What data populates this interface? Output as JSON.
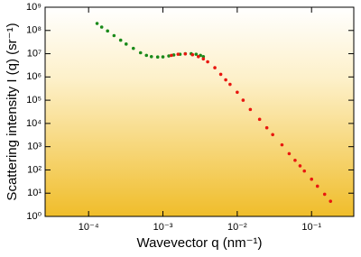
{
  "chart_data": {
    "type": "scatter",
    "x_label": "Wavevector q (nm⁻¹)",
    "y_label": "Scattering intensity I (q) (sr⁻¹)",
    "x_log": true,
    "y_log": true,
    "xlim": [
      2.6e-05,
      0.37
    ],
    "ylim": [
      1,
      1000000000
    ],
    "xticks": [
      {
        "value": 0.0001,
        "label": "10⁻⁴"
      },
      {
        "value": 0.001,
        "label": "10⁻³"
      },
      {
        "value": 0.01,
        "label": "10⁻²"
      },
      {
        "value": 0.1,
        "label": "10⁻¹"
      }
    ],
    "yticks": [
      {
        "value": 1,
        "label": "10⁰"
      },
      {
        "value": 10,
        "label": "10¹"
      },
      {
        "value": 100,
        "label": "10²"
      },
      {
        "value": 1000,
        "label": "10³"
      },
      {
        "value": 10000,
        "label": "10⁴"
      },
      {
        "value": 100000,
        "label": "10⁵"
      },
      {
        "value": 1000000,
        "label": "10⁶"
      },
      {
        "value": 10000000,
        "label": "10⁷"
      },
      {
        "value": 100000000,
        "label": "10⁸"
      },
      {
        "value": 1000000000,
        "label": "10⁹"
      }
    ],
    "series": [
      {
        "color": "#1a8a1a",
        "x": [
          0.00013,
          0.00015,
          0.00018,
          0.00022,
          0.00027,
          0.00032,
          0.0004,
          0.0005,
          0.0006,
          0.0007,
          0.00085,
          0.001,
          0.0012,
          0.0014,
          0.0017,
          0.002,
          0.0024,
          0.0028,
          0.0032,
          0.0035
        ],
        "values": [
          200000000,
          140000000,
          95000000,
          60000000,
          38000000,
          26000000,
          17000000,
          11000000,
          8500000,
          7500000,
          7200000,
          7300000,
          8000000,
          8800000,
          9500000,
          10000000,
          10000000,
          9500000,
          8500000,
          7500000
        ]
      },
      {
        "color": "#e8170f",
        "x": [
          0.0013,
          0.0016,
          0.002,
          0.0025,
          0.003,
          0.0035,
          0.004,
          0.005,
          0.006,
          0.007,
          0.008,
          0.01,
          0.012,
          0.015,
          0.02,
          0.025,
          0.03,
          0.04,
          0.05,
          0.06,
          0.07,
          0.08,
          0.1,
          0.12,
          0.15,
          0.18
        ],
        "values": [
          8500000,
          9500000,
          9800000,
          9000000,
          7500000,
          6000000,
          4500000,
          2500000,
          1300000,
          750000,
          480000,
          220000,
          100000,
          40000,
          15000,
          6500,
          3300,
          1200,
          500,
          260,
          150,
          90,
          40,
          20,
          9,
          4.5
        ]
      }
    ]
  }
}
